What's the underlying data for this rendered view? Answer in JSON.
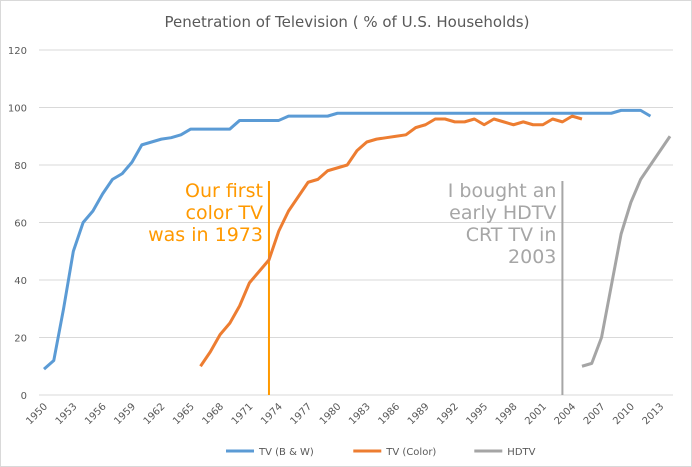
{
  "chart_data": {
    "type": "line",
    "title": "Penetration of Television ( % of U.S. Households)",
    "xlabel": "",
    "ylabel": "",
    "ylim": [
      0,
      120
    ],
    "yticks": [
      "0",
      "20",
      "40",
      "60",
      "80",
      "100",
      "120"
    ],
    "xlim": [
      1950,
      2014
    ],
    "xticks": [
      "1950",
      "1953",
      "1956",
      "1959",
      "1962",
      "1965",
      "1968",
      "1971",
      "1974",
      "1977",
      "1980",
      "1983",
      "1986",
      "1989",
      "1992",
      "1995",
      "1998",
      "2001",
      "2004",
      "2007",
      "2010",
      "2013"
    ],
    "grid": true,
    "legend_position": "bottom",
    "series": [
      {
        "name": "TV  (B & W)",
        "color": "#5b9bd5",
        "start": 1950,
        "values": [
          9,
          12,
          30,
          50,
          60,
          64,
          70,
          75,
          77,
          81,
          87,
          88,
          89,
          89.5,
          90.5,
          92.5,
          92.5,
          92.5,
          92.5,
          92.5,
          95.5,
          95.5,
          95.5,
          95.5,
          95.5,
          97,
          97,
          97,
          97,
          97,
          98,
          98,
          98,
          98,
          98,
          98,
          98,
          98,
          98,
          98,
          98,
          98,
          98,
          98,
          98,
          98,
          98,
          98,
          98,
          98,
          98,
          98,
          98,
          98,
          98,
          98,
          98,
          98,
          98,
          99,
          99,
          99,
          97
        ]
      },
      {
        "name": "TV (Color)",
        "color": "#ed7d31",
        "start": 1966,
        "values": [
          10,
          15,
          21,
          25,
          31,
          39,
          43,
          47,
          57,
          64,
          69,
          74,
          75,
          78,
          79,
          80,
          85,
          88,
          89,
          89.5,
          90,
          90.5,
          93,
          94,
          96,
          96,
          95,
          95,
          96,
          94,
          96,
          95,
          94,
          95,
          94,
          94,
          96,
          95,
          97,
          96
        ]
      },
      {
        "name": "HDTV",
        "color": "#a5a5a5",
        "start": 2005,
        "values": [
          10,
          11,
          20,
          38,
          56,
          67,
          75,
          80,
          85,
          90
        ]
      }
    ],
    "annotations": [
      {
        "text_lines": [
          "Our first",
          "color TV",
          "was in 1973"
        ],
        "year": 1973,
        "color": "#ff9900"
      },
      {
        "text_lines": [
          "I bought an",
          "early HDTV",
          "CRT TV in",
          "2003"
        ],
        "year": 2003,
        "color": "#a6a6a6"
      }
    ]
  }
}
